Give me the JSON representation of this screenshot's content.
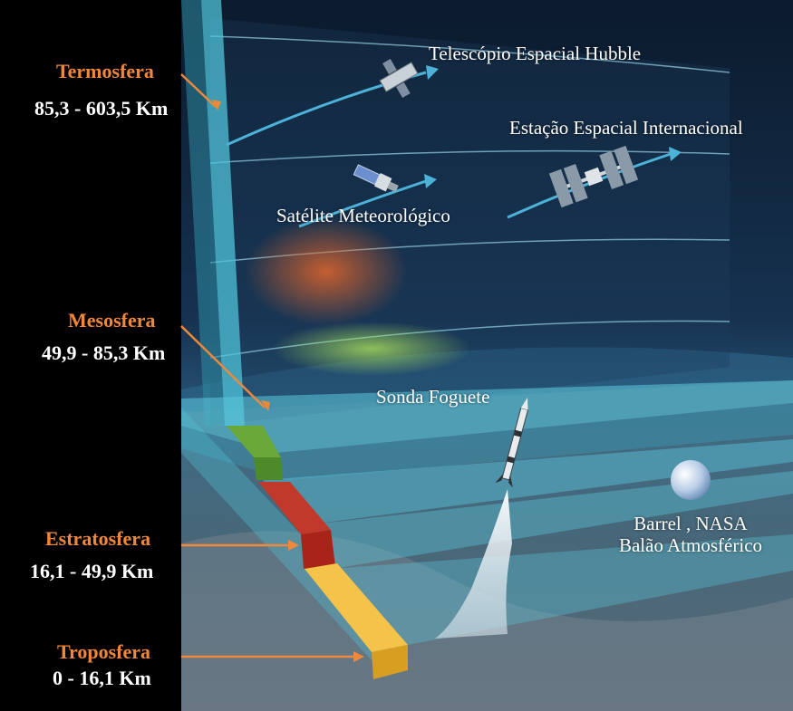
{
  "layers": [
    {
      "name": "Termosfera",
      "range": "85,3 - 603,5 Km"
    },
    {
      "name": "Mesosfera",
      "range": "49,9 - 85,3 Km"
    },
    {
      "name": "Estratosfera",
      "range": "16,1 - 49,9 Km"
    },
    {
      "name": "Troposfera",
      "range": "0 - 16,1 Km"
    }
  ],
  "objects": {
    "hubble": "Telescópio Espacial Hubble",
    "iss": "Estação Espacial Internacional",
    "weather_satellite": "Satélite Meteorológico",
    "rocket": "Sonda Foguete",
    "balloon_line1": "Barrel , NASA",
    "balloon_line2": "Balão Atmosférico"
  },
  "colors": {
    "label_accent": "#f0883a",
    "troposphere": "#f5c24a",
    "stratosphere": "#c0392b",
    "mesosphere": "#6aa83a",
    "thermosphere": "#4fc3d8"
  }
}
